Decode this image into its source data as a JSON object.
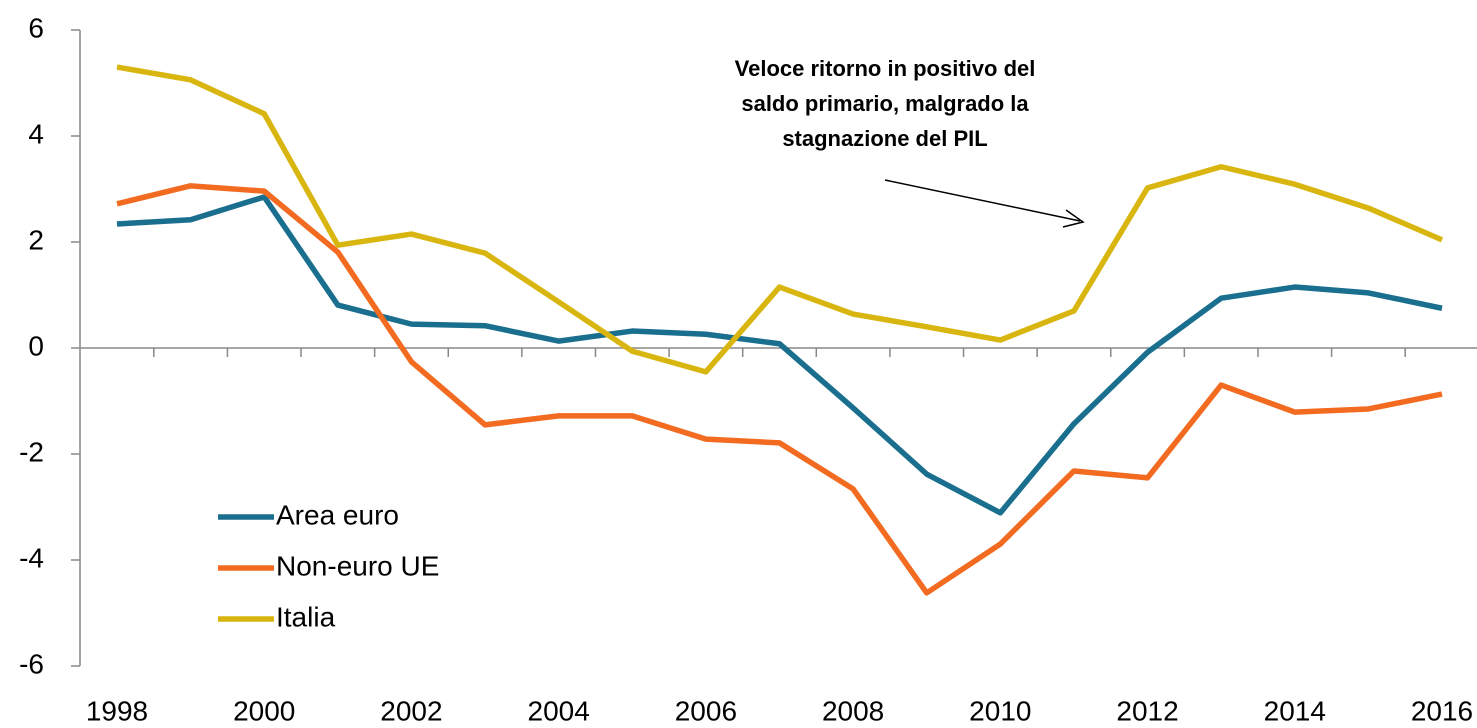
{
  "chart_data": {
    "type": "line",
    "annotation": [
      "Veloce ritorno in positivo del",
      "saldo primario, malgrado la",
      "stagnazione del PIL"
    ],
    "x": [
      1998,
      1999,
      2000,
      2001,
      2002,
      2003,
      2004,
      2005,
      2006,
      2007,
      2008,
      2009,
      2010,
      2011,
      2012,
      2013,
      2014,
      2015,
      2016
    ],
    "series": [
      {
        "name": "Area euro",
        "color": "#1a6e8e",
        "values": [
          2.34,
          2.42,
          2.85,
          0.81,
          0.45,
          0.42,
          0.13,
          0.32,
          0.26,
          0.08,
          -1.13,
          -2.38,
          -3.11,
          -1.43,
          -0.08,
          0.94,
          1.15,
          1.04,
          0.75
        ]
      },
      {
        "name": "Non-euro UE",
        "color": "#f26b21",
        "values": [
          2.72,
          3.06,
          2.96,
          1.81,
          -0.26,
          -1.45,
          -1.28,
          -1.28,
          -1.72,
          -1.79,
          -2.66,
          -4.62,
          -3.7,
          -2.32,
          -2.45,
          -0.7,
          -1.21,
          -1.15,
          -0.87
        ]
      },
      {
        "name": "Italia",
        "color": "#d9b60f",
        "values": [
          5.3,
          5.06,
          4.42,
          1.94,
          2.15,
          1.79,
          0.87,
          -0.06,
          -0.45,
          1.15,
          0.64,
          0.4,
          0.15,
          0.7,
          3.02,
          3.42,
          3.09,
          2.64,
          2.04
        ]
      }
    ],
    "xlim": [
      1998,
      2016
    ],
    "xticks": [
      1998,
      2000,
      2002,
      2004,
      2006,
      2008,
      2010,
      2012,
      2014,
      2016
    ],
    "ylim": [
      -6,
      6
    ],
    "yticks": [
      -6,
      -4,
      -2,
      0,
      2,
      4,
      6
    ],
    "grid": false,
    "legend": "lower left"
  }
}
